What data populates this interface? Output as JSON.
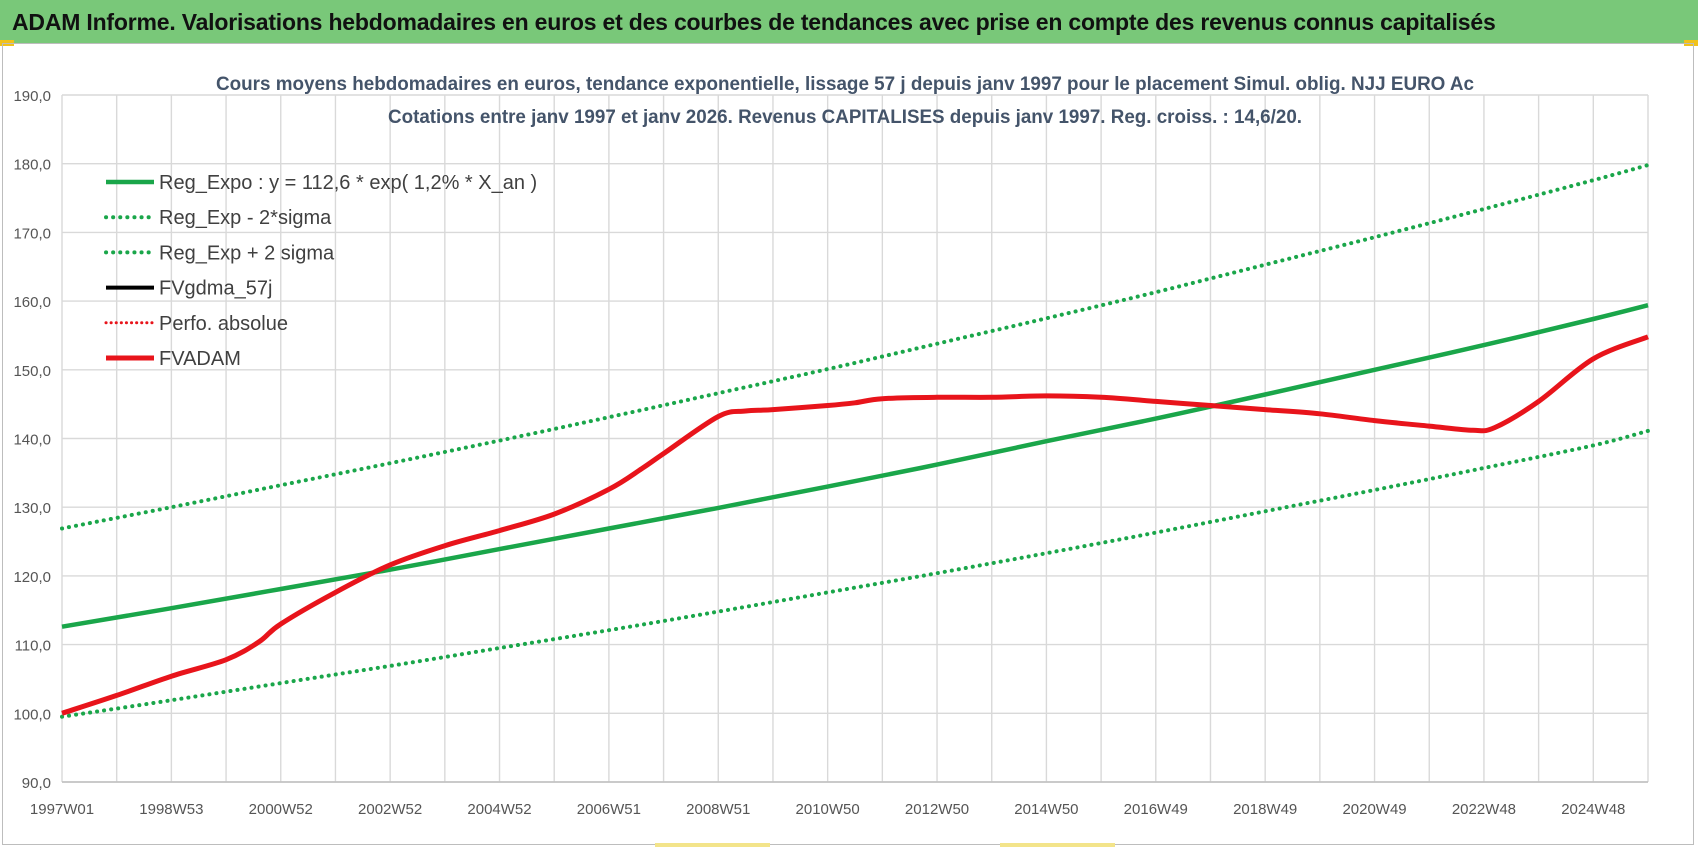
{
  "header": {
    "title": "ADAM Informe. Valorisations hebdomadaires en euros et des courbes de tendances avec prise en compte des revenus connus capitalisés"
  },
  "colors": {
    "green": "#1aa64a",
    "red": "#e8141b",
    "black": "#000000",
    "grid": "#d9d9d9"
  },
  "chart_data": {
    "type": "line",
    "title": "Cours moyens hebdomadaires en euros, tendance exponentielle, lissage 57 j depuis janv 1997 pour le placement Simul. oblig. NJJ EURO Ac",
    "subtitle": "Cotations entre janv 1997 et janv 2026. Revenus CAPITALISES depuis janv 1997. Reg. croiss. : 14,6/20.",
    "ylim": [
      90,
      190
    ],
    "yticks": [
      "90,0",
      "100,0",
      "110,0",
      "120,0",
      "130,0",
      "140,0",
      "150,0",
      "160,0",
      "170,0",
      "180,0",
      "190,0"
    ],
    "xlim": [
      0,
      29
    ],
    "xticks": [
      {
        "x": 0,
        "label": "1997W01"
      },
      {
        "x": 2,
        "label": "1998W53"
      },
      {
        "x": 4,
        "label": "2000W52"
      },
      {
        "x": 6,
        "label": "2002W52"
      },
      {
        "x": 8,
        "label": "2004W52"
      },
      {
        "x": 10,
        "label": "2006W51"
      },
      {
        "x": 12,
        "label": "2008W51"
      },
      {
        "x": 14,
        "label": "2010W50"
      },
      {
        "x": 16,
        "label": "2012W50"
      },
      {
        "x": 18,
        "label": "2014W50"
      },
      {
        "x": 20,
        "label": "2016W49"
      },
      {
        "x": 22,
        "label": "2018W49"
      },
      {
        "x": 24,
        "label": "2020W49"
      },
      {
        "x": 26,
        "label": "2022W48"
      },
      {
        "x": 28,
        "label": "2024W48"
      }
    ],
    "series": [
      {
        "name": "Reg_Expo : y = 112,6 * exp( 1,2% *  X_an )",
        "style": "solid-green",
        "x": [
          0,
          2,
          4,
          6,
          8,
          10,
          12,
          14,
          16,
          18,
          20,
          22,
          24,
          26,
          28,
          29
        ],
        "values": [
          112.6,
          115.3,
          118.1,
          120.9,
          123.9,
          126.9,
          129.9,
          133.0,
          136.2,
          139.6,
          142.9,
          146.4,
          150.0,
          153.6,
          157.4,
          159.4
        ]
      },
      {
        "name": "Reg_Exp - 2*sigma",
        "style": "dotted-green",
        "x": [
          0,
          2,
          4,
          6,
          8,
          10,
          12,
          14,
          16,
          18,
          20,
          22,
          24,
          26,
          28,
          29
        ],
        "values": [
          99.5,
          101.9,
          104.4,
          106.9,
          109.5,
          112.1,
          114.8,
          117.6,
          120.4,
          123.3,
          126.3,
          129.4,
          132.5,
          135.7,
          139.0,
          141.1
        ]
      },
      {
        "name": "Reg_Exp + 2 sigma",
        "style": "dotted-green",
        "x": [
          0,
          2,
          4,
          6,
          8,
          10,
          12,
          14,
          16,
          18,
          20,
          22,
          24,
          26,
          28,
          29
        ],
        "values": [
          126.9,
          130.0,
          133.2,
          136.4,
          139.7,
          143.1,
          146.6,
          150.1,
          153.8,
          157.5,
          161.3,
          165.3,
          169.3,
          173.4,
          177.6,
          179.8
        ]
      },
      {
        "name": "FVgdma_57j",
        "style": "solid-black",
        "x": [],
        "values": []
      },
      {
        "name": "Perfo. absolue",
        "style": "dotted-red",
        "x": [],
        "values": []
      },
      {
        "name": "FVADAM",
        "style": "solid-red",
        "x": [
          0,
          1,
          2,
          3,
          3.6,
          4,
          5,
          6,
          7,
          8,
          9,
          10,
          10.6,
          11,
          12,
          12.5,
          13,
          14,
          14.5,
          15,
          16,
          17,
          18,
          19,
          20,
          21,
          22,
          23,
          24,
          25,
          25.8,
          26.2,
          27,
          28,
          29
        ],
        "values": [
          100.0,
          102.6,
          105.4,
          107.8,
          110.4,
          113.0,
          117.6,
          121.6,
          124.4,
          126.6,
          129.0,
          132.6,
          135.6,
          137.8,
          143.2,
          144.0,
          144.2,
          144.8,
          145.2,
          145.8,
          146.0,
          146.0,
          146.2,
          146.0,
          145.4,
          144.8,
          144.2,
          143.6,
          142.6,
          141.8,
          141.2,
          141.6,
          145.4,
          151.6,
          154.8
        ]
      }
    ],
    "legend_position": "top-left"
  }
}
